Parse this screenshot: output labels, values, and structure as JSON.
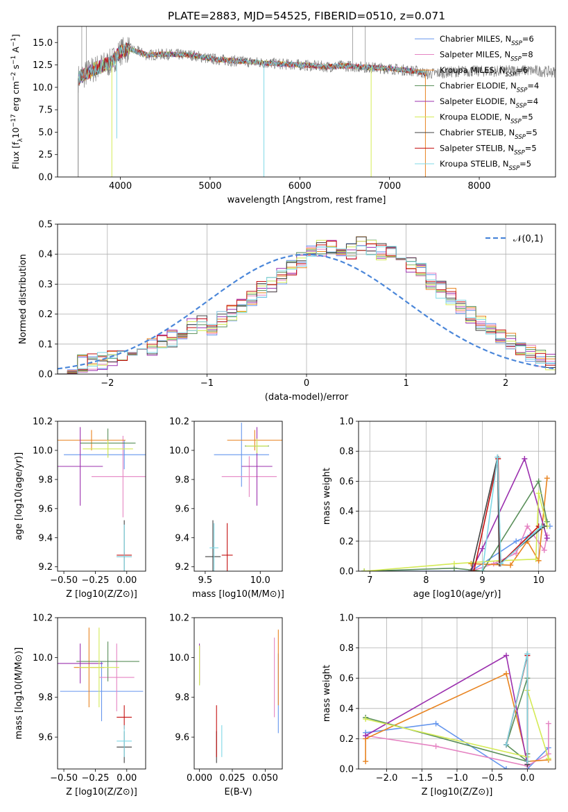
{
  "figure_title": "PLATE=2883, MJD=54525, FIBERID=0510, z=0.071",
  "models": [
    {
      "name": "Chabrier MILES",
      "nssp": "6",
      "color": "#6495ed"
    },
    {
      "name": "Salpeter MILES",
      "nssp": "8",
      "color": "#e583c2"
    },
    {
      "name": "Kroupa MILES",
      "nssp": "6",
      "color": "#e8821e"
    },
    {
      "name": "Chabrier ELODIE",
      "nssp": "4",
      "color": "#5a8f5a"
    },
    {
      "name": "Salpeter ELODIE",
      "nssp": "4",
      "color": "#9b2fae"
    },
    {
      "name": "Kroupa ELODIE",
      "nssp": "5",
      "color": "#d4ea55"
    },
    {
      "name": "Chabrier STELIB",
      "nssp": "5",
      "color": "#404040"
    },
    {
      "name": "Salpeter STELIB",
      "nssp": "5",
      "color": "#c41010"
    },
    {
      "name": "Kroupa STELIB",
      "nssp": "5",
      "color": "#7fd8e6"
    }
  ],
  "chart_data": [
    {
      "id": "spectrum",
      "type": "line",
      "title": "PLATE=2883, MJD=54525, FIBERID=0510, z=0.071",
      "xlabel": "wavelength [Angstrom, rest frame]",
      "ylabel": "Flux [f_λ 10^-17 erg cm^-2 s^-1 A^-1]",
      "xlim": [
        3300,
        8850
      ],
      "ylim": [
        0,
        16.8
      ],
      "xticks": [
        4000,
        5000,
        6000,
        7000,
        8000
      ],
      "yticks": [
        0.0,
        2.5,
        5.0,
        7.5,
        10.0,
        12.5,
        15.0
      ],
      "grid": false,
      "legend": "top-right",
      "data_color": "#808080",
      "continuum": {
        "x": [
          3530,
          3700,
          3900,
          4000,
          4100,
          4300,
          4500,
          4800,
          5000,
          5200,
          5500,
          5800,
          6000,
          6300,
          6500,
          6800,
          7000,
          7300,
          7420
        ],
        "y": [
          11.0,
          12.0,
          12.8,
          14.0,
          14.3,
          13.6,
          13.7,
          13.6,
          13.2,
          13.0,
          12.8,
          12.6,
          12.5,
          12.3,
          12.4,
          12.2,
          12.1,
          11.8,
          11.5
        ]
      },
      "data_extension": {
        "x": [
          7420,
          7800,
          8200,
          8500,
          8850
        ],
        "y": [
          11.9,
          11.8,
          11.8,
          11.9,
          11.7
        ]
      },
      "dips": [
        {
          "x": 3530,
          "y": 0.0,
          "color": "#808080"
        },
        {
          "x": 3905,
          "y": 0.0,
          "color": "#d4ea55"
        },
        {
          "x": 3960,
          "y": 4.3,
          "color": "#7fd8e6"
        },
        {
          "x": 5600,
          "y": 0.0,
          "color": "#7fd8e6"
        },
        {
          "x": 6795,
          "y": 0.0,
          "color": "#d4ea55"
        },
        {
          "x": 7400,
          "y": 0.0,
          "color": "#e8821e"
        }
      ],
      "spikes": [
        {
          "x": 3570,
          "y": 16.8
        },
        {
          "x": 3620,
          "y": 16.8
        },
        {
          "x": 6590,
          "y": 16.8
        },
        {
          "x": 6730,
          "y": 16.8
        }
      ]
    },
    {
      "id": "residuals",
      "type": "histogram",
      "xlabel": "(data-model)/error",
      "ylabel": "Normed distribution",
      "xlim": [
        -2.5,
        2.5
      ],
      "ylim": [
        0,
        0.5
      ],
      "xticks": [
        -2,
        -1,
        0,
        1,
        2
      ],
      "yticks": [
        0.0,
        0.1,
        0.2,
        0.3,
        0.4,
        0.5
      ],
      "grid": true,
      "legend": "top-right",
      "reference_label": "𝒩(0,1)",
      "reference_color": "#4a86d9",
      "bin_start": -2.5,
      "bin_width": 0.1,
      "base_values": [
        0.03,
        0.03,
        0.035,
        0.04,
        0.045,
        0.05,
        0.06,
        0.07,
        0.08,
        0.09,
        0.11,
        0.12,
        0.14,
        0.16,
        0.17,
        0.16,
        0.18,
        0.2,
        0.23,
        0.25,
        0.28,
        0.3,
        0.33,
        0.36,
        0.38,
        0.4,
        0.42,
        0.43,
        0.42,
        0.41,
        0.43,
        0.42,
        0.41,
        0.4,
        0.38,
        0.36,
        0.34,
        0.31,
        0.28,
        0.26,
        0.22,
        0.2,
        0.17,
        0.15,
        0.13,
        0.11,
        0.09,
        0.07,
        0.05,
        0.04
      ]
    },
    {
      "id": "age_vs_Z",
      "type": "errorbar",
      "xlabel": "Z [log10(Z/Z⊙)]",
      "ylabel": "age [log10(age/yr)]",
      "xlim": [
        -0.55,
        0.15
      ],
      "ylim": [
        9.17,
        10.2
      ],
      "xticks": [
        -0.5,
        -0.25,
        0.0
      ],
      "yticks": [
        9.2,
        9.4,
        9.6,
        9.8,
        10.0,
        10.2
      ],
      "grid": false,
      "points": [
        {
          "model": 0,
          "x": -0.02,
          "xerr": 0.48,
          "y": 9.97,
          "yerr": 0.1
        },
        {
          "model": 1,
          "x": -0.03,
          "xerr": 0.25,
          "y": 9.82,
          "yerr": 0.28
        },
        {
          "model": 2,
          "x": -0.28,
          "xerr": 0.27,
          "y": 10.07,
          "yerr": 0.07
        },
        {
          "model": 3,
          "x": -0.15,
          "xerr": 0.22,
          "y": 10.05,
          "yerr": 0.1
        },
        {
          "model": 4,
          "x": -0.37,
          "xerr": 0.18,
          "y": 9.89,
          "yerr": 0.27
        },
        {
          "model": 5,
          "x": -0.15,
          "xerr": 0.2,
          "y": 10.01,
          "yerr": 0.06
        },
        {
          "model": 6,
          "x": -0.02,
          "xerr": 0.06,
          "y": 9.27,
          "yerr": 0.25
        },
        {
          "model": 7,
          "x": -0.02,
          "xerr": 0.06,
          "y": 9.28,
          "yerr": 0.02
        },
        {
          "model": 8,
          "x": -0.02,
          "xerr": 0.06,
          "y": 9.27,
          "yerr": 0.22
        }
      ]
    },
    {
      "id": "age_vs_mass",
      "type": "errorbar",
      "xlabel": "mass [log10(M/M⊙)]",
      "ylabel": "",
      "xlim": [
        9.4,
        10.2
      ],
      "ylim": [
        9.17,
        10.2
      ],
      "xticks": [
        9.5,
        10.0
      ],
      "yticks": [
        9.2,
        9.4,
        9.6,
        9.8,
        10.0,
        10.2
      ],
      "grid": false,
      "points": [
        {
          "model": 0,
          "x": 9.83,
          "xerr": 0.25,
          "y": 9.97,
          "yerr": 0.22
        },
        {
          "model": 1,
          "x": 9.9,
          "xerr": 0.25,
          "y": 9.82,
          "yerr": 0.14
        },
        {
          "model": 2,
          "x": 9.95,
          "xerr": 0.25,
          "y": 10.07,
          "yerr": 0.07
        },
        {
          "model": 3,
          "x": 9.97,
          "xerr": 0.11,
          "y": 10.03,
          "yerr": 0.05
        },
        {
          "model": 4,
          "x": 9.97,
          "xerr": 0.14,
          "y": 9.89,
          "yerr": 0.27
        },
        {
          "model": 5,
          "x": 9.97,
          "xerr": 0.1,
          "y": 10.03,
          "yerr": 0.05
        },
        {
          "model": 6,
          "x": 9.57,
          "xerr": 0.07,
          "y": 9.27,
          "yerr": 0.25
        },
        {
          "model": 7,
          "x": 9.7,
          "xerr": 0.05,
          "y": 9.28,
          "yerr": 0.22
        },
        {
          "model": 8,
          "x": 9.58,
          "xerr": 0.04,
          "y": 9.33,
          "yerr": 0.17
        }
      ]
    },
    {
      "id": "weight_vs_age",
      "type": "line",
      "xlabel": "age [log10(age/yr)]",
      "ylabel": "mass weight",
      "xlim": [
        6.8,
        10.3
      ],
      "ylim": [
        0,
        1
      ],
      "xticks": [
        7,
        8,
        9,
        10
      ],
      "yticks": [
        0.0,
        0.2,
        0.4,
        0.6,
        0.8,
        1.0
      ],
      "grid": true,
      "series": [
        {
          "model": 0,
          "x": [
            6.9,
            8.8,
            9.6,
            9.85,
            10.1,
            10.2
          ],
          "y": [
            0.0,
            0.0,
            0.2,
            0.24,
            0.3,
            0.3
          ]
        },
        {
          "model": 1,
          "x": [
            8.8,
            9.2,
            9.6,
            9.8,
            10.1,
            10.15
          ],
          "y": [
            0.0,
            0.05,
            0.12,
            0.3,
            0.14,
            0.24
          ]
        },
        {
          "model": 2,
          "x": [
            8.8,
            9.5,
            9.8,
            10.0,
            10.15
          ],
          "y": [
            0.05,
            0.04,
            0.2,
            0.07,
            0.62
          ]
        },
        {
          "model": 3,
          "x": [
            6.9,
            8.5,
            9.0,
            10.0,
            10.15
          ],
          "y": [
            0.0,
            0.02,
            0.0,
            0.6,
            0.33
          ]
        },
        {
          "model": 4,
          "x": [
            8.8,
            9.0,
            9.75,
            10.15
          ],
          "y": [
            0.0,
            0.15,
            0.75,
            0.22
          ]
        },
        {
          "model": 5,
          "x": [
            6.9,
            8.5,
            9.3,
            9.95,
            10.0,
            10.15
          ],
          "y": [
            0.0,
            0.05,
            0.07,
            0.08,
            0.52,
            0.3
          ]
        },
        {
          "model": 6,
          "x": [
            8.8,
            9.27,
            9.3,
            10.1
          ],
          "y": [
            0.0,
            0.76,
            0.05,
            0.3
          ]
        },
        {
          "model": 7,
          "x": [
            8.85,
            9.28,
            9.32,
            10.0
          ],
          "y": [
            0.0,
            0.75,
            0.05,
            0.3
          ]
        },
        {
          "model": 8,
          "x": [
            9.0,
            9.27,
            9.33,
            10.05
          ],
          "y": [
            0.0,
            0.76,
            0.05,
            0.3
          ]
        }
      ]
    },
    {
      "id": "mass_vs_Z",
      "type": "errorbar",
      "xlabel": "Z [log10(Z/Z⊙)]",
      "ylabel": "mass [log10(M/M⊙)]",
      "xlim": [
        -0.55,
        0.15
      ],
      "ylim": [
        9.44,
        10.2
      ],
      "xticks": [
        -0.5,
        -0.25,
        0.0
      ],
      "yticks": [
        9.6,
        9.8,
        10.0,
        10.2
      ],
      "grid": false,
      "points": [
        {
          "model": 0,
          "x": -0.2,
          "xerr": 0.33,
          "y": 9.83,
          "yerr": 0.15
        },
        {
          "model": 1,
          "x": -0.08,
          "xerr": 0.14,
          "y": 9.9,
          "yerr": 0.17
        },
        {
          "model": 2,
          "x": -0.3,
          "xerr": 0.12,
          "y": 9.95,
          "yerr": 0.2
        },
        {
          "model": 3,
          "x": -0.15,
          "xerr": 0.25,
          "y": 9.98,
          "yerr": 0.1
        },
        {
          "model": 4,
          "x": -0.37,
          "xerr": 0.18,
          "y": 9.97,
          "yerr": 0.1
        },
        {
          "model": 5,
          "x": -0.22,
          "xerr": 0.16,
          "y": 9.95,
          "yerr": 0.2
        },
        {
          "model": 6,
          "x": -0.02,
          "xerr": 0.06,
          "y": 9.55,
          "yerr": 0.08
        },
        {
          "model": 7,
          "x": -0.02,
          "xerr": 0.06,
          "y": 9.7,
          "yerr": 0.06
        },
        {
          "model": 8,
          "x": -0.02,
          "xerr": 0.06,
          "y": 9.58,
          "yerr": 0.08
        }
      ]
    },
    {
      "id": "mass_vs_ebv",
      "type": "errorbar",
      "xlabel": "E(B-V)",
      "ylabel": "",
      "xlim": [
        -0.004,
        0.063
      ],
      "ylim": [
        9.44,
        10.2
      ],
      "xticks": [
        0.0,
        0.025,
        0.05
      ],
      "yticks": [
        9.6,
        9.8,
        10.0,
        10.2
      ],
      "grid": false,
      "points": [
        {
          "model": 0,
          "x": 0.06,
          "xerr": 0,
          "y": 9.82,
          "yerr": 0.2
        },
        {
          "model": 1,
          "x": 0.057,
          "xerr": 0,
          "y": 9.9,
          "yerr": 0.2
        },
        {
          "model": 2,
          "x": 0.06,
          "xerr": 0,
          "y": 9.95,
          "yerr": 0.19
        },
        {
          "model": 3,
          "x": 0.0,
          "xerr": 0,
          "y": 9.96,
          "yerr": 0.1
        },
        {
          "model": 4,
          "x": 0.0,
          "xerr": 0,
          "y": 9.97,
          "yerr": 0.1
        },
        {
          "model": 5,
          "x": 0.0,
          "xerr": 0,
          "y": 9.96,
          "yerr": 0.1
        },
        {
          "model": 6,
          "x": 0.013,
          "xerr": 0,
          "y": 9.55,
          "yerr": 0.08
        },
        {
          "model": 7,
          "x": 0.013,
          "xerr": 0,
          "y": 9.63,
          "yerr": 0.13
        },
        {
          "model": 8,
          "x": 0.017,
          "xerr": 0,
          "y": 9.58,
          "yerr": 0.08
        }
      ]
    },
    {
      "id": "weight_vs_Z",
      "type": "line",
      "xlabel": "Z [log10(Z/Z⊙)]",
      "ylabel": "mass weight",
      "xlim": [
        -2.4,
        0.4
      ],
      "ylim": [
        0,
        1
      ],
      "xticks": [
        -2.0,
        -1.5,
        -1.0,
        -0.5,
        0.0
      ],
      "yticks": [
        0.0,
        0.2,
        0.4,
        0.6,
        0.8,
        1.0
      ],
      "grid": true,
      "series": [
        {
          "model": 0,
          "x": [
            -2.3,
            -1.3,
            -0.3,
            0.0,
            0.3
          ],
          "y": [
            0.24,
            0.3,
            0.0,
            0.0,
            0.14
          ]
        },
        {
          "model": 1,
          "x": [
            -2.3,
            -1.3,
            0.0,
            0.3,
            0.3
          ],
          "y": [
            0.22,
            0.15,
            0.02,
            0.1,
            0.3
          ]
        },
        {
          "model": 2,
          "x": [
            -2.3,
            -2.3,
            -0.3,
            0.0,
            0.3
          ],
          "y": [
            0.05,
            0.2,
            0.63,
            0.05,
            0.06
          ]
        },
        {
          "model": 3,
          "x": [
            -2.3,
            0.0,
            -0.3,
            0.0,
            0.0
          ],
          "y": [
            0.34,
            0.05,
            0.16,
            0.6,
            0.1
          ]
        },
        {
          "model": 4,
          "x": [
            -2.3,
            -0.3,
            0.0
          ],
          "y": [
            0.22,
            0.75,
            0.03
          ]
        },
        {
          "model": 5,
          "x": [
            -2.3,
            0.0,
            0.0,
            0.3
          ],
          "y": [
            0.33,
            0.08,
            0.52,
            0.07
          ]
        },
        {
          "model": 6,
          "x": [
            -0.3,
            0.0,
            0.0
          ],
          "y": [
            0.16,
            0.76,
            0.03
          ]
        },
        {
          "model": 7,
          "x": [
            -0.3,
            0.0,
            0.0
          ],
          "y": [
            0.16,
            0.75,
            0.05
          ]
        },
        {
          "model": 8,
          "x": [
            -0.3,
            0.0,
            0.0
          ],
          "y": [
            0.16,
            0.76,
            0.05
          ]
        }
      ]
    }
  ]
}
